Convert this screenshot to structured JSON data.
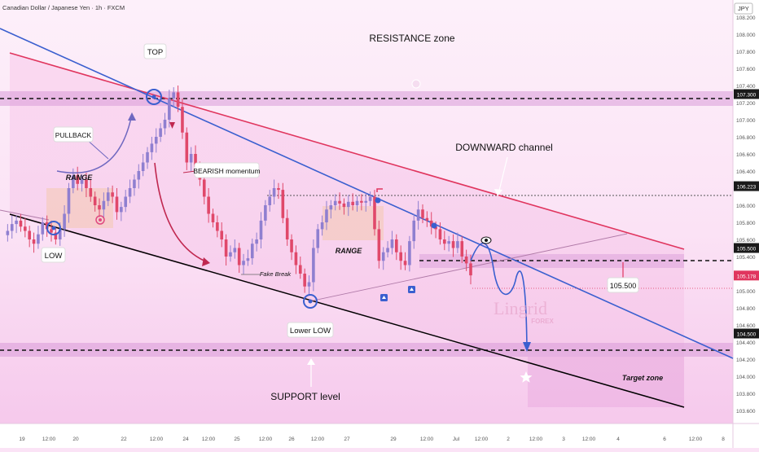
{
  "header": {
    "symbol_title": "Canadian Dollar / Japanese Yen · 1h · FXCM",
    "currency": "JPY"
  },
  "watermark": {
    "brand": "Lingrid",
    "sub": "FOREX"
  },
  "colors": {
    "background": "#fbe3f6",
    "zone_band": "#d9a4d9",
    "bull_candle": "#8f7fd0",
    "bear_candle": "#e0486a",
    "channel_red": "#e0355e",
    "trend_blue": "#3a5fcf",
    "support_black": "#000000",
    "current_price_tag": "#e0355e"
  },
  "annotations": {
    "resistance_zone": "RESISTANCE zone",
    "downward_channel": "DOWNWARD channel",
    "top": "TOP",
    "pullback": "PULLBACK",
    "range_left": "RANGE",
    "range_mid": "RANGE",
    "low": "LOW",
    "bearish_momentum": "BEARISH momentum",
    "fake_break": "Fake Break",
    "lower_low": "Lower LOW",
    "support_level": "SUPPORT level",
    "target_zone": "Target zone",
    "level_callout": "105.500"
  },
  "chart_data": {
    "type": "line",
    "title": "Canadian Dollar / Japanese Yen · 1h · FXCM",
    "ylabel": "JPY",
    "ylim": [
      103.55,
      108.3
    ],
    "yticks": [
      "108.200",
      "108.000",
      "107.800",
      "107.600",
      "107.400",
      "107.200",
      "107.000",
      "106.800",
      "106.600",
      "106.400",
      "106.200",
      "106.000",
      "105.800",
      "105.600",
      "105.400",
      "105.200",
      "105.000",
      "104.800",
      "104.600",
      "104.400",
      "104.200",
      "104.000",
      "103.800",
      "103.600"
    ],
    "xticks": [
      "19",
      "12:00",
      "20",
      "22",
      "12:00",
      "24",
      "12:00",
      "25",
      "12:00",
      "26",
      "12:00",
      "27",
      "29",
      "12:00",
      "Jul",
      "12:00",
      "2",
      "12:00",
      "3",
      "12:00",
      "4",
      "6",
      "12:00",
      "8"
    ],
    "key_levels": [
      {
        "label": "107.300",
        "value": 107.3,
        "style": "dashed"
      },
      {
        "label": "106.223",
        "value": 106.223,
        "style": "dotted"
      },
      {
        "label": "105.500",
        "value": 105.5,
        "style": "dashed"
      },
      {
        "label": "105.178",
        "value": 105.178,
        "style": "current"
      },
      {
        "label": "104.500",
        "value": 104.5,
        "style": "dashed"
      }
    ],
    "series": [
      {
        "values": [
          105.65,
          105.7,
          105.78,
          105.82,
          105.75,
          105.7,
          105.6,
          105.55,
          105.66,
          105.8,
          105.72,
          105.68,
          105.6,
          105.72,
          105.9,
          106.2,
          106.35,
          106.25,
          106.3,
          106.2,
          106.1,
          106.0,
          105.95,
          106.05,
          106.15,
          106.1,
          105.92,
          105.98,
          106.1,
          106.2,
          106.3,
          106.4,
          106.5,
          106.62,
          106.72,
          106.8,
          106.9,
          107.0,
          107.25,
          107.32,
          107.15,
          106.85,
          106.5,
          106.6,
          106.45,
          106.3,
          106.1,
          105.9,
          105.8,
          105.7,
          105.6,
          105.4,
          105.45,
          105.5,
          105.3,
          105.35,
          105.38,
          105.55,
          105.6,
          105.82,
          106.0,
          106.1,
          106.2,
          106.18,
          105.85,
          105.6,
          105.45,
          105.3,
          105.2,
          105.05,
          105.1,
          105.5,
          105.72,
          105.8,
          105.95,
          106.0,
          106.05,
          106.02,
          105.98,
          106.04,
          106.0,
          106.05,
          106.03,
          106.05,
          106.1,
          105.72,
          105.35,
          105.45,
          105.5,
          105.6,
          105.45,
          105.35,
          105.3,
          105.58,
          105.82,
          105.95,
          105.85,
          105.82,
          105.75,
          105.72,
          105.6,
          105.55,
          105.58,
          105.5,
          105.58,
          105.4,
          105.32,
          105.18
        ]
      }
    ],
    "projection": [
      105.5,
      105.6,
      105.35,
      105.2,
      105.3,
      105.35,
      105.1,
      104.75,
      104.5
    ],
    "grid": false,
    "legend": "none"
  }
}
